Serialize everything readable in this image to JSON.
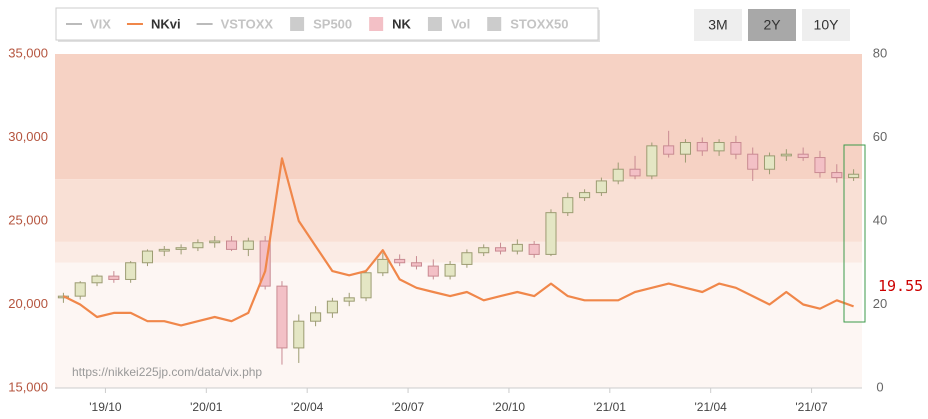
{
  "chart_data": {
    "type": "candlestick",
    "categories": [
      null,
      null,
      null,
      "'19/10",
      null,
      null,
      null,
      null,
      null,
      "'20/01",
      null,
      null,
      null,
      null,
      null,
      "'20/04",
      null,
      null,
      null,
      null,
      null,
      "'20/07",
      null,
      null,
      null,
      null,
      null,
      "'20/10",
      null,
      null,
      null,
      null,
      null,
      "'21/01",
      null,
      null,
      null,
      null,
      null,
      "'21/04",
      null,
      null,
      null,
      null,
      null,
      "'21/07",
      null,
      null
    ],
    "series": [
      {
        "name": "NK",
        "type": "candlestick",
        "up_color": "#e4e6c4",
        "down_color": "#f3c0c6",
        "up_stroke": "#9c9c72",
        "down_stroke": "#c98a92",
        "open": [
          20400,
          20500,
          21300,
          21700,
          21500,
          22500,
          23200,
          23300,
          23400,
          23700,
          23800,
          23300,
          23800,
          21100,
          17400,
          19000,
          19500,
          20200,
          20400,
          21900,
          22700,
          22500,
          22300,
          21700,
          22400,
          23100,
          23400,
          23200,
          23600,
          23000,
          25500,
          26400,
          26700,
          27400,
          28100,
          27700,
          29500,
          29000,
          29700,
          29200,
          29700,
          29000,
          28100,
          28900,
          29000,
          28800,
          27900,
          27600
        ],
        "high": [
          20700,
          21400,
          21800,
          22000,
          22600,
          23300,
          23500,
          23600,
          23900,
          24100,
          24100,
          24000,
          24100,
          21400,
          19400,
          19900,
          20400,
          20700,
          22100,
          23100,
          23000,
          22900,
          22700,
          22600,
          23300,
          23600,
          23700,
          23900,
          23800,
          25700,
          26700,
          26900,
          27600,
          28500,
          28900,
          29700,
          30400,
          29900,
          30000,
          29900,
          30100,
          29400,
          29100,
          29300,
          29400,
          29200,
          28400,
          28100
        ],
        "low": [
          20100,
          20300,
          21100,
          21300,
          21300,
          22300,
          22900,
          23000,
          23200,
          23400,
          23200,
          22900,
          20900,
          16400,
          16500,
          18700,
          19200,
          19900,
          20200,
          21700,
          22300,
          22100,
          21500,
          21500,
          22200,
          22900,
          23000,
          23000,
          22800,
          22900,
          25300,
          26200,
          26500,
          27200,
          27500,
          27500,
          28800,
          28500,
          28900,
          28900,
          28700,
          27400,
          27800,
          28600,
          28600,
          27600,
          27300,
          27400
        ],
        "close": [
          20500,
          21300,
          21700,
          21500,
          22500,
          23200,
          23300,
          23400,
          23700,
          23800,
          23300,
          23800,
          21100,
          17400,
          19000,
          19500,
          20200,
          20400,
          21900,
          22700,
          22500,
          22300,
          21700,
          22400,
          23100,
          23400,
          23200,
          23600,
          23000,
          25500,
          26400,
          26700,
          27400,
          28100,
          27700,
          29500,
          29000,
          29700,
          29200,
          29700,
          29000,
          28100,
          28900,
          29000,
          28800,
          27900,
          27600,
          27800
        ]
      },
      {
        "name": "NKvi",
        "type": "line",
        "axis": "y2",
        "color": "#f0874a",
        "values": [
          22,
          20,
          17,
          18,
          18,
          16,
          16,
          15,
          16,
          17,
          16,
          18,
          28,
          55,
          40,
          34,
          28,
          27,
          28,
          33,
          26,
          24,
          23,
          22,
          23,
          21,
          22,
          23,
          22,
          25,
          22,
          21,
          21,
          21,
          23,
          24,
          25,
          24,
          23,
          25,
          24,
          22,
          20,
          23,
          20,
          19,
          21,
          19.55
        ]
      }
    ],
    "ylim": [
      15000,
      35000
    ],
    "yticks": [
      {
        "value": 15000,
        "label": "15,000"
      },
      {
        "value": 20000,
        "label": "20,000"
      },
      {
        "value": 25000,
        "label": "25,000"
      },
      {
        "value": 30000,
        "label": "30,000"
      },
      {
        "value": 35000,
        "label": "35,000"
      }
    ],
    "y2lim": [
      0,
      80
    ],
    "y2ticks": [
      0,
      20,
      40,
      60,
      80
    ],
    "zones": [
      {
        "from": 50,
        "to": 80,
        "color": "#f6d2c4"
      },
      {
        "from": 35,
        "to": 50,
        "color": "#f9e0d5"
      },
      {
        "from": 30,
        "to": 35,
        "color": "#fbebe4"
      },
      {
        "from": 0,
        "to": 30,
        "color": "#fdf6f3"
      }
    ],
    "legend": [
      {
        "label": "VIX",
        "symbol": "line",
        "color": "#bbbbbb",
        "active": false
      },
      {
        "label": "NKvi",
        "symbol": "line",
        "color": "#f0874a",
        "active": true
      },
      {
        "label": "VSTOXX",
        "symbol": "line",
        "color": "#bbbbbb",
        "active": false
      },
      {
        "label": "SP500",
        "symbol": "box",
        "color": "#cccccc",
        "active": false
      },
      {
        "label": "NK",
        "symbol": "box",
        "color": "#f3c0c6",
        "active": true
      },
      {
        "label": "Vol",
        "symbol": "box",
        "color": "#cccccc",
        "active": false
      },
      {
        "label": "STOXX50",
        "symbol": "box",
        "color": "#cccccc",
        "active": false
      }
    ],
    "range_buttons": [
      {
        "label": "3M",
        "active": false
      },
      {
        "label": "2Y",
        "active": true
      },
      {
        "label": "10Y",
        "active": false
      }
    ],
    "source": "https://nikkei225jp.com/data/vix.php"
  }
}
